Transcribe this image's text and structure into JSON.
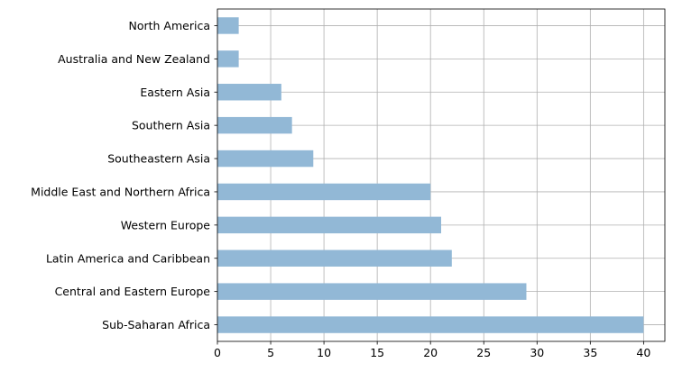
{
  "chart_data": {
    "type": "bar",
    "orientation": "horizontal",
    "title": "",
    "xlabel": "",
    "ylabel": "",
    "categories": [
      "Sub-Saharan Africa",
      "Central and Eastern Europe",
      "Latin America and Caribbean",
      "Western Europe",
      "Middle East and Northern Africa",
      "Southeastern Asia",
      "Southern Asia",
      "Eastern Asia",
      "Australia and New Zealand",
      "North America"
    ],
    "values": [
      40,
      29,
      22,
      21,
      20,
      9,
      7,
      6,
      2,
      2
    ],
    "xlim": [
      0,
      42
    ],
    "xticks": [
      0,
      5,
      10,
      15,
      20,
      25,
      30,
      35,
      40
    ],
    "grid": true,
    "bar_color": "#92b8d6"
  }
}
